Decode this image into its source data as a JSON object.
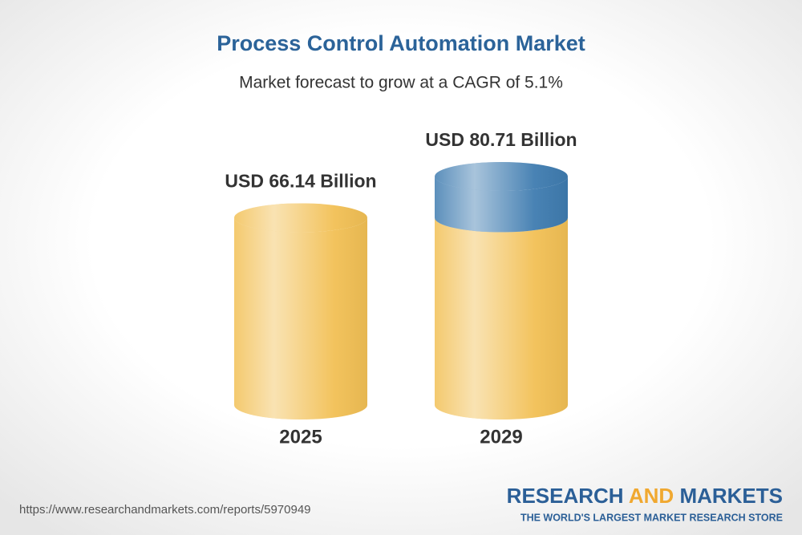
{
  "chart_data": {
    "type": "cylinder",
    "title": "Process Control Automation Market",
    "subtitle": "Market forecast to grow at a CAGR of 5.1%",
    "categories": [
      "2025",
      "2029"
    ],
    "values": [
      66.14,
      80.71
    ],
    "value_labels": [
      "USD 66.14 Billion",
      "USD 80.71 Billion"
    ],
    "color": "#f2c055",
    "growth_color": "#3f7cb0"
  },
  "footer": {
    "url": "https://www.researchandmarkets.com/reports/5970949",
    "brand": [
      "RESEARCH",
      "AND",
      "MARKETS"
    ],
    "tagline": "THE WORLD'S LARGEST MARKET RESEARCH STORE"
  }
}
